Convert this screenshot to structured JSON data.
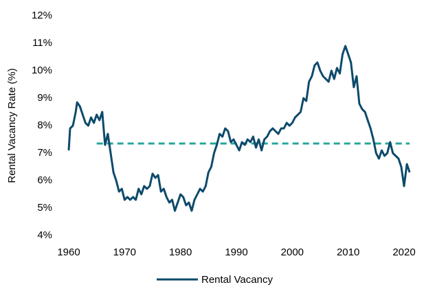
{
  "chart_data": {
    "type": "line",
    "ylabel": "Rental Vacancy Rate (%)",
    "x": [
      1960,
      1960.25,
      1960.75,
      1961.25,
      1961.5,
      1962,
      1962.5,
      1963,
      1963.5,
      1964,
      1964.5,
      1965,
      1965.5,
      1966,
      1966.25,
      1966.5,
      1967,
      1967.5,
      1968,
      1968.5,
      1969,
      1969.5,
      1970,
      1970.5,
      1971,
      1971.5,
      1972,
      1972.5,
      1973,
      1973.5,
      1974,
      1974.5,
      1975,
      1975.5,
      1976,
      1976.5,
      1977,
      1977.5,
      1978,
      1978.5,
      1979,
      1979.5,
      1980,
      1980.5,
      1981,
      1981.5,
      1982,
      1982.5,
      1983,
      1983.5,
      1984,
      1984.5,
      1985,
      1985.5,
      1986,
      1986.5,
      1987,
      1987.5,
      1988,
      1988.5,
      1989,
      1989.5,
      1990,
      1990.5,
      1991,
      1991.5,
      1992,
      1992.5,
      1993,
      1993.5,
      1994,
      1994.5,
      1995,
      1995.5,
      1996,
      1996.5,
      1997,
      1997.5,
      1998,
      1998.5,
      1999,
      1999.5,
      2000,
      2000.5,
      2001,
      2001.5,
      2002,
      2002.5,
      2003,
      2003.5,
      2004,
      2004.5,
      2005,
      2005.5,
      2006,
      2006.5,
      2007,
      2007.5,
      2008,
      2008.5,
      2009,
      2009.5,
      2010,
      2010.5,
      2011,
      2011.5,
      2012,
      2012.5,
      2013,
      2013.5,
      2014,
      2014.5,
      2015,
      2015.5,
      2016,
      2016.5,
      2017,
      2017.5,
      2018,
      2018.5,
      2019,
      2019.5,
      2020,
      2020.5,
      2021
    ],
    "series": [
      {
        "name": "Rental Vacancy",
        "color": "#0d4a6b",
        "values": [
          7.1,
          7.9,
          8.0,
          8.5,
          8.85,
          8.7,
          8.4,
          8.1,
          8.0,
          8.3,
          8.1,
          8.4,
          8.2,
          8.5,
          7.9,
          7.3,
          7.7,
          7.0,
          6.3,
          6.0,
          5.6,
          5.7,
          5.3,
          5.4,
          5.3,
          5.4,
          5.3,
          5.7,
          5.5,
          5.8,
          5.7,
          5.8,
          6.25,
          6.1,
          6.2,
          5.6,
          5.7,
          5.4,
          5.2,
          5.3,
          4.9,
          5.2,
          5.5,
          5.4,
          5.1,
          5.2,
          4.9,
          5.3,
          5.5,
          5.7,
          5.6,
          5.8,
          6.3,
          6.5,
          7.0,
          7.3,
          7.7,
          7.6,
          7.9,
          7.8,
          7.4,
          7.5,
          7.3,
          7.1,
          7.4,
          7.3,
          7.5,
          7.4,
          7.6,
          7.2,
          7.5,
          7.1,
          7.5,
          7.6,
          7.8,
          7.9,
          7.8,
          7.7,
          7.9,
          7.9,
          8.1,
          8.0,
          8.1,
          8.3,
          8.4,
          8.5,
          9.0,
          8.9,
          9.6,
          9.8,
          10.2,
          10.3,
          10.0,
          9.8,
          9.7,
          9.6,
          10.0,
          9.7,
          10.1,
          9.9,
          10.6,
          10.9,
          10.6,
          10.3,
          9.4,
          9.8,
          8.8,
          8.6,
          8.5,
          8.2,
          7.9,
          7.5,
          7.0,
          6.8,
          7.1,
          6.9,
          7.0,
          7.4,
          7.0,
          6.9,
          6.8,
          6.5,
          5.8,
          6.6,
          6.3
        ]
      }
    ],
    "reference_line": {
      "value": 7.35,
      "color": "#26a69a",
      "dashed": true
    },
    "xlim": [
      1960,
      2022
    ],
    "xticks": [
      1960,
      1970,
      1980,
      1990,
      2000,
      2010,
      2020
    ],
    "ylim": [
      4,
      12
    ],
    "yticks": [
      {
        "value": 4,
        "label": "4%"
      },
      {
        "value": 5,
        "label": "5%"
      },
      {
        "value": 6,
        "label": "6%"
      },
      {
        "value": 7,
        "label": "7%"
      },
      {
        "value": 8,
        "label": "8%"
      },
      {
        "value": 9,
        "label": "9%"
      },
      {
        "value": 10,
        "label": "10%"
      },
      {
        "value": 11,
        "label": "11%"
      },
      {
        "value": 12,
        "label": "12%"
      }
    ],
    "grid": false,
    "legend": "bottom"
  }
}
